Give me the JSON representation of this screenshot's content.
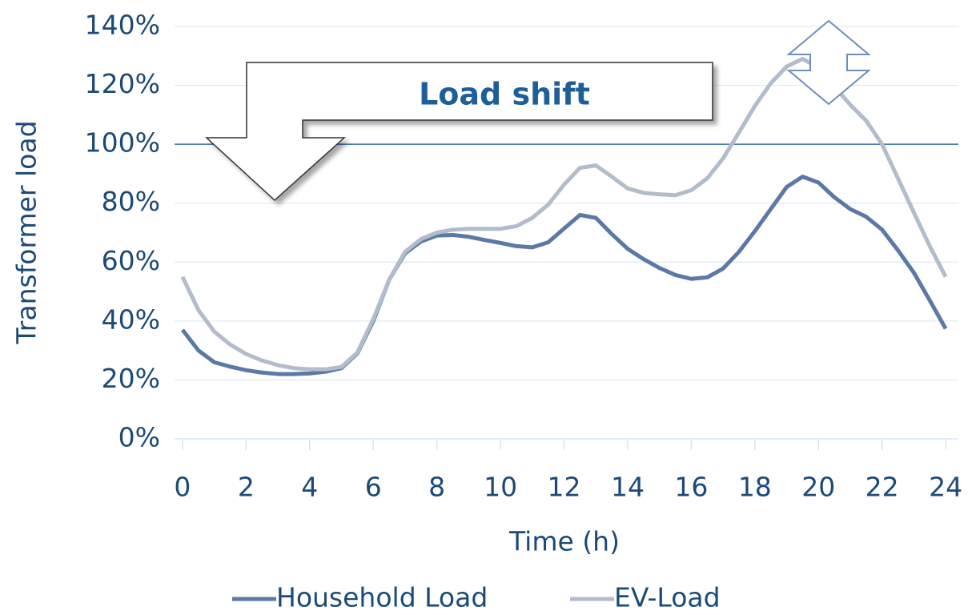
{
  "chart_data": {
    "type": "line",
    "x_label": "Time (h)",
    "y_label": "Transformer load",
    "annotation": "Load shift",
    "x": [
      0,
      0.5,
      1,
      1.5,
      2,
      2.5,
      3,
      3.5,
      4,
      4.5,
      5,
      5.5,
      6,
      6.5,
      7,
      7.5,
      8,
      8.5,
      9,
      9.5,
      10,
      10.5,
      11,
      11.5,
      12,
      12.5,
      13,
      13.5,
      14,
      14.5,
      15,
      15.5,
      16,
      16.5,
      17,
      17.5,
      18,
      18.5,
      19,
      19.5,
      20,
      20.5,
      21,
      21.5,
      22,
      22.5,
      23,
      23.5,
      24
    ],
    "series": [
      {
        "name": "Household Load",
        "color": "#5b79a6",
        "values": [
          37,
          30,
          26,
          24.5,
          23.3,
          22.5,
          22,
          22,
          22.2,
          22.8,
          24,
          29,
          40,
          54,
          63,
          67,
          69,
          69.2,
          68.6,
          67.5,
          66.5,
          65.4,
          65,
          66.7,
          71.4,
          76,
          75,
          69.5,
          64.5,
          61,
          58,
          55.6,
          54.3,
          54.8,
          57.8,
          63.5,
          70.5,
          78,
          85.5,
          89,
          87,
          82,
          78,
          75.4,
          71,
          64,
          56.4,
          47,
          37.4
        ]
      },
      {
        "name": "EV-Load",
        "color": "#b3bccb",
        "values": [
          55,
          43.7,
          36.4,
          32,
          28.8,
          26.6,
          25,
          24,
          23.6,
          23.6,
          24.4,
          29.3,
          40.7,
          54,
          63.5,
          67.8,
          70,
          71,
          71.3,
          71.3,
          71.3,
          72.2,
          75,
          79.5,
          86.3,
          92,
          92.8,
          89,
          85,
          83.5,
          83,
          82.7,
          84.4,
          88.4,
          95.2,
          104,
          113,
          120.7,
          126.4,
          129,
          126,
          119.6,
          113.4,
          108,
          100,
          88.4,
          76.8,
          65.4,
          55
        ]
      }
    ],
    "xlim": [
      -0.25,
      24.4
    ],
    "xticks": [
      0,
      2,
      4,
      6,
      8,
      10,
      12,
      14,
      16,
      18,
      20,
      22,
      24
    ],
    "ylim": [
      0,
      140
    ],
    "yticks": [
      {
        "value": 0,
        "label": "0%"
      },
      {
        "value": 20,
        "label": "20%"
      },
      {
        "value": 40,
        "label": "40%"
      },
      {
        "value": 60,
        "label": "60%"
      },
      {
        "value": 80,
        "label": "80%"
      },
      {
        "value": 100,
        "label": "100%"
      },
      {
        "value": 120,
        "label": "120%"
      },
      {
        "value": 140,
        "label": "140%"
      }
    ],
    "limit_line": 100,
    "limit_color": "#2e6aa8",
    "grid": true,
    "legend": "bottom"
  }
}
